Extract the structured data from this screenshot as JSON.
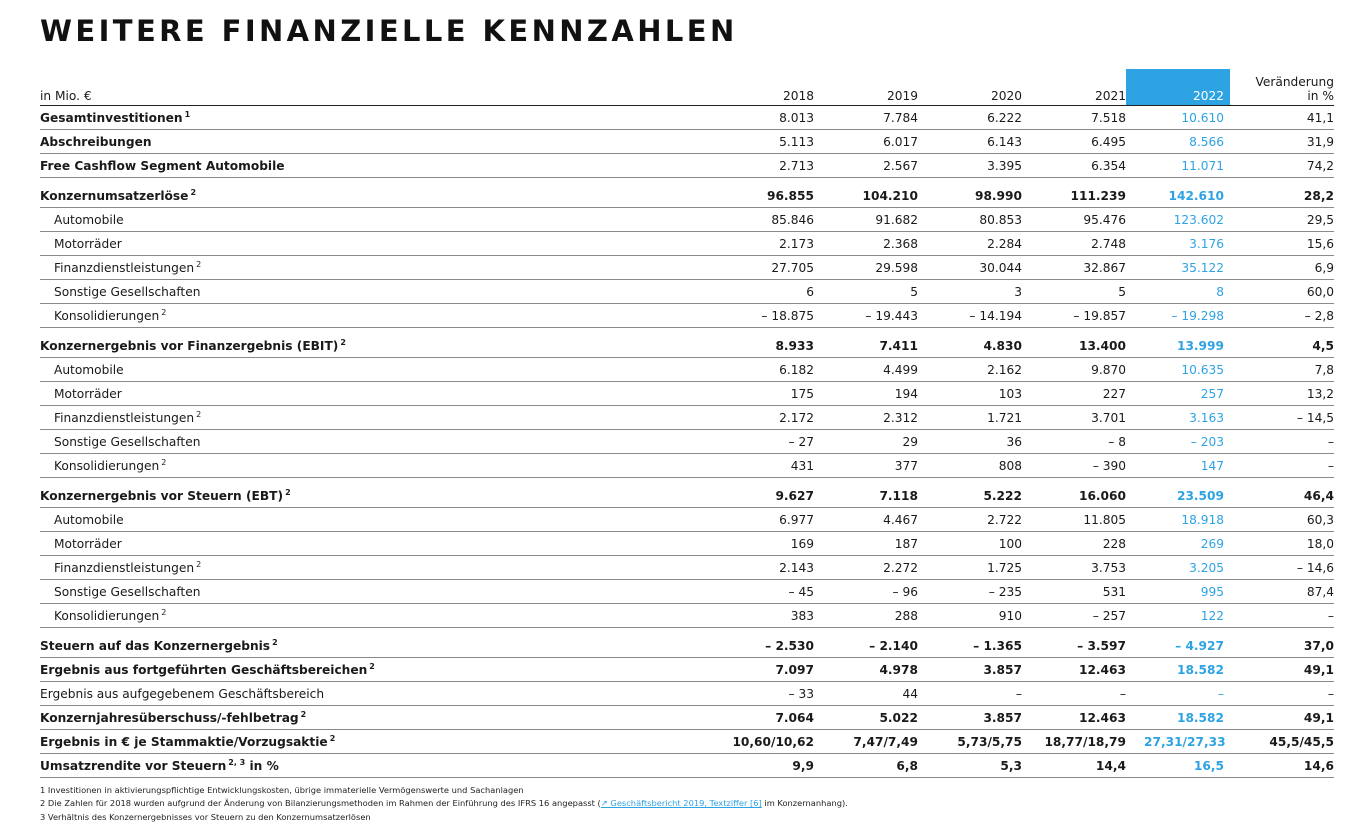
{
  "title": "WEITERE FINANZIELLE KENNZAHLEN",
  "header": {
    "unit": "in Mio. €",
    "years": [
      "2018",
      "2019",
      "2020",
      "2021",
      "2022"
    ],
    "change_line1": "Veränderung",
    "change_line2": "in %"
  },
  "accent_color": "#2ea3e3",
  "rows": [
    {
      "label": "Gesamtinvestitionen",
      "sup": "1",
      "bold": true,
      "values": [
        "8.013",
        "7.784",
        "6.222",
        "7.518",
        "10.610"
      ],
      "change": "41,1"
    },
    {
      "label": "Abschreibungen",
      "sup": "",
      "bold": true,
      "values": [
        "5.113",
        "6.017",
        "6.143",
        "6.495",
        "8.566"
      ],
      "change": "31,9"
    },
    {
      "label": "Free Cashflow Segment Automobile",
      "sup": "",
      "bold": true,
      "values": [
        "2.713",
        "2.567",
        "3.395",
        "6.354",
        "11.071"
      ],
      "change": "74,2"
    },
    {
      "gap": true
    },
    {
      "label": "Konzernumsatzerlöse",
      "sup": "2",
      "bold": true,
      "boldValues": true,
      "values": [
        "96.855",
        "104.210",
        "98.990",
        "111.239",
        "142.610"
      ],
      "change": "28,2"
    },
    {
      "label": "Automobile",
      "sup": "",
      "sub": true,
      "values": [
        "85.846",
        "91.682",
        "80.853",
        "95.476",
        "123.602"
      ],
      "change": "29,5"
    },
    {
      "label": "Motorräder",
      "sup": "",
      "sub": true,
      "values": [
        "2.173",
        "2.368",
        "2.284",
        "2.748",
        "3.176"
      ],
      "change": "15,6"
    },
    {
      "label": "Finanzdienstleistungen",
      "sup": "2",
      "sub": true,
      "values": [
        "27.705",
        "29.598",
        "30.044",
        "32.867",
        "35.122"
      ],
      "change": "6,9"
    },
    {
      "label": "Sonstige Gesellschaften",
      "sup": "",
      "sub": true,
      "values": [
        "6",
        "5",
        "3",
        "5",
        "8"
      ],
      "change": "60,0"
    },
    {
      "label": "Konsolidierungen",
      "sup": "2",
      "sub": true,
      "values": [
        "– 18.875",
        "– 19.443",
        "– 14.194",
        "– 19.857",
        "– 19.298"
      ],
      "change": "– 2,8"
    },
    {
      "gap": true
    },
    {
      "label": "Konzernergebnis vor Finanzergebnis (EBIT)",
      "sup": "2",
      "bold": true,
      "boldValues": true,
      "values": [
        "8.933",
        "7.411",
        "4.830",
        "13.400",
        "13.999"
      ],
      "change": "4,5"
    },
    {
      "label": "Automobile",
      "sup": "",
      "sub": true,
      "values": [
        "6.182",
        "4.499",
        "2.162",
        "9.870",
        "10.635"
      ],
      "change": "7,8"
    },
    {
      "label": "Motorräder",
      "sup": "",
      "sub": true,
      "values": [
        "175",
        "194",
        "103",
        "227",
        "257"
      ],
      "change": "13,2"
    },
    {
      "label": "Finanzdienstleistungen",
      "sup": "2",
      "sub": true,
      "values": [
        "2.172",
        "2.312",
        "1.721",
        "3.701",
        "3.163"
      ],
      "change": "– 14,5"
    },
    {
      "label": "Sonstige Gesellschaften",
      "sup": "",
      "sub": true,
      "values": [
        "– 27",
        "29",
        "36",
        "– 8",
        "– 203"
      ],
      "change": "–"
    },
    {
      "label": "Konsolidierungen",
      "sup": "2",
      "sub": true,
      "values": [
        "431",
        "377",
        "808",
        "– 390",
        "147"
      ],
      "change": "–"
    },
    {
      "gap": true
    },
    {
      "label": "Konzernergebnis vor Steuern (EBT)",
      "sup": "2",
      "bold": true,
      "boldValues": true,
      "values": [
        "9.627",
        "7.118",
        "5.222",
        "16.060",
        "23.509"
      ],
      "change": "46,4"
    },
    {
      "label": "Automobile",
      "sup": "",
      "sub": true,
      "values": [
        "6.977",
        "4.467",
        "2.722",
        "11.805",
        "18.918"
      ],
      "change": "60,3"
    },
    {
      "label": "Motorräder",
      "sup": "",
      "sub": true,
      "values": [
        "169",
        "187",
        "100",
        "228",
        "269"
      ],
      "change": "18,0"
    },
    {
      "label": "Finanzdienstleistungen",
      "sup": "2",
      "sub": true,
      "values": [
        "2.143",
        "2.272",
        "1.725",
        "3.753",
        "3.205"
      ],
      "change": "– 14,6"
    },
    {
      "label": "Sonstige Gesellschaften",
      "sup": "",
      "sub": true,
      "values": [
        "– 45",
        "– 96",
        "– 235",
        "531",
        "995"
      ],
      "change": "87,4"
    },
    {
      "label": "Konsolidierungen",
      "sup": "2",
      "sub": true,
      "values": [
        "383",
        "288",
        "910",
        "– 257",
        "122"
      ],
      "change": "–"
    },
    {
      "gap": true
    },
    {
      "label": "Steuern auf das Konzernergebnis",
      "sup": "2",
      "bold": true,
      "boldValues": true,
      "values": [
        "– 2.530",
        "– 2.140",
        "– 1.365",
        "– 3.597",
        "– 4.927"
      ],
      "change": "37,0"
    },
    {
      "label": "Ergebnis aus fortgeführten Geschäftsbereichen",
      "sup": "2",
      "bold": true,
      "boldValues": true,
      "values": [
        "7.097",
        "4.978",
        "3.857",
        "12.463",
        "18.582"
      ],
      "change": "49,1"
    },
    {
      "label": "Ergebnis aus aufgegebenem Geschäftsbereich",
      "sup": "",
      "values": [
        "– 33",
        "44",
        "–",
        "–",
        "–"
      ],
      "change": "–"
    },
    {
      "label": "Konzernjahresüberschuss/-fehlbetrag",
      "sup": "2",
      "bold": true,
      "boldValues": true,
      "values": [
        "7.064",
        "5.022",
        "3.857",
        "12.463",
        "18.582"
      ],
      "change": "49,1"
    },
    {
      "label": "Ergebnis in € je Stammaktie/Vorzugsaktie",
      "sup": "2",
      "bold": true,
      "boldValues": true,
      "values": [
        "10,60/10,62",
        "7,47/7,49",
        "5,73/5,75",
        "18,77/18,79",
        "27,31/27,33"
      ],
      "change": "45,5/45,5"
    },
    {
      "label": "Umsatzrendite vor Steuern",
      "sup": "2, 3",
      "suffix": " in %",
      "bold": true,
      "boldValues": true,
      "values": [
        "9,9",
        "6,8",
        "5,3",
        "14,4",
        "16,5"
      ],
      "change": "14,6"
    }
  ],
  "footnotes": {
    "f1_mark": "1",
    "f1_text": "Investitionen in aktivierungspflichtige Entwicklungskosten, übrige immaterielle Vermögenswerte und Sachanlagen",
    "f2_mark": "2",
    "f2_before": "Die Zahlen für 2018 wurden aufgrund der Änderung von Bilanzierungsmethoden im Rahmen der Einführung des IFRS 16 angepasst (",
    "f2_link": "↗ Geschäftsbericht 2019, Textziffer [6]",
    "f2_after": " im Konzernanhang).",
    "f3_mark": "3",
    "f3_text": "Verhältnis des Konzernergebnisses vor Steuern zu den Konzernumsatzerlösen"
  }
}
